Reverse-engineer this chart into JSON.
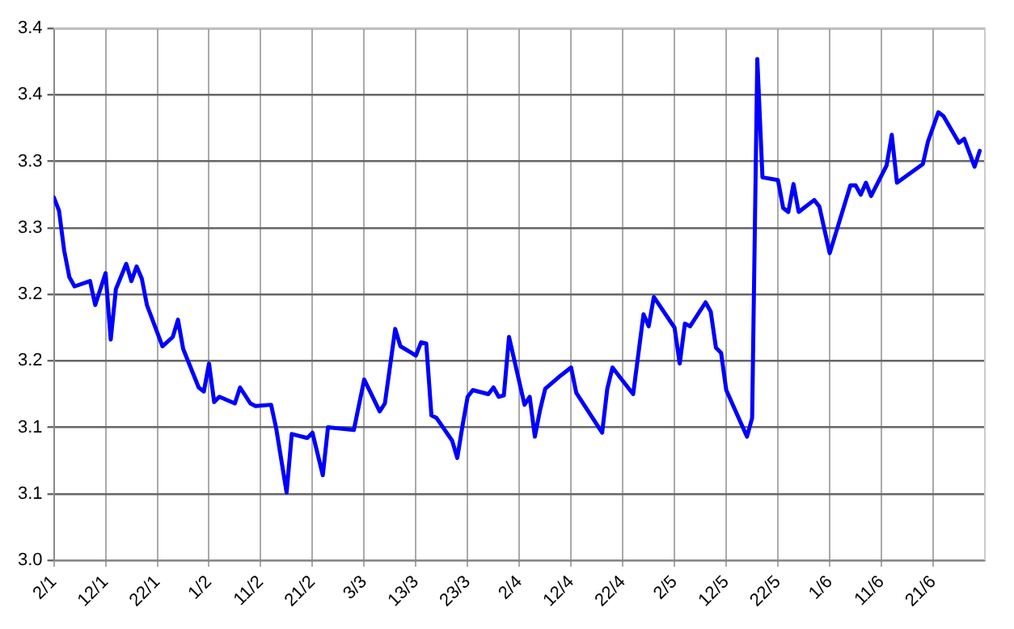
{
  "chart_data": {
    "type": "line",
    "marker": "none",
    "line_style": "solid",
    "grid": true,
    "legend": false,
    "xlim": [
      "--01-02",
      "--07-01"
    ],
    "xticks": [
      {
        "value": "--01-02",
        "label": "2/1"
      },
      {
        "value": "--01-12",
        "label": "12/1"
      },
      {
        "value": "--01-22",
        "label": "22/1"
      },
      {
        "value": "--02-01",
        "label": "1/2"
      },
      {
        "value": "--02-11",
        "label": "11/2"
      },
      {
        "value": "--02-21",
        "label": "21/2"
      },
      {
        "value": "--03-03",
        "label": "3/3"
      },
      {
        "value": "--03-13",
        "label": "13/3"
      },
      {
        "value": "--03-23",
        "label": "23/3"
      },
      {
        "value": "--04-02",
        "label": "2/4"
      },
      {
        "value": "--04-12",
        "label": "12/4"
      },
      {
        "value": "--04-22",
        "label": "22/4"
      },
      {
        "value": "--05-02",
        "label": "2/5"
      },
      {
        "value": "--05-12",
        "label": "12/5"
      },
      {
        "value": "--05-22",
        "label": "22/5"
      },
      {
        "value": "--06-01",
        "label": "1/6"
      },
      {
        "value": "--06-11",
        "label": "11/6"
      },
      {
        "value": "--06-21",
        "label": "21/6"
      }
    ],
    "ylim": [
      3.0,
      3.4
    ],
    "yticks": [
      {
        "value": 3.0,
        "label": "3.0"
      },
      {
        "value": 3.05,
        "label": "3.1"
      },
      {
        "value": 3.1,
        "label": "3.1"
      },
      {
        "value": 3.15,
        "label": "3.2"
      },
      {
        "value": 3.2,
        "label": "3.2"
      },
      {
        "value": 3.25,
        "label": "3.3"
      },
      {
        "value": 3.3,
        "label": "3.3"
      },
      {
        "value": 3.35,
        "label": "3.4"
      },
      {
        "value": 3.4,
        "label": "3.4"
      }
    ],
    "x": [
      "--01-02",
      "--01-03",
      "--01-04",
      "--01-05",
      "--01-06",
      "--01-09",
      "--01-10",
      "--01-12",
      "--01-13",
      "--01-14",
      "--01-16",
      "--01-17",
      "--01-18",
      "--01-19",
      "--01-20",
      "--01-23",
      "--01-25",
      "--01-26",
      "--01-27",
      "--01-30",
      "--01-31",
      "--02-01",
      "--02-02",
      "--02-03",
      "--02-06",
      "--02-07",
      "--02-09",
      "--02-10",
      "--02-13",
      "--02-14",
      "--02-16",
      "--02-17",
      "--02-20",
      "--02-21",
      "--02-23",
      "--02-24",
      "--03-01",
      "--03-03",
      "--03-06",
      "--03-07",
      "--03-09",
      "--03-10",
      "--03-13",
      "--03-14",
      "--03-15",
      "--03-16",
      "--03-17",
      "--03-20",
      "--03-21",
      "--03-22",
      "--03-23",
      "--03-24",
      "--03-27",
      "--03-28",
      "--03-29",
      "--03-30",
      "--03-31",
      "--04-03",
      "--04-04",
      "--04-05",
      "--04-06",
      "--04-07",
      "--04-10",
      "--04-12",
      "--04-13",
      "--04-18",
      "--04-19",
      "--04-20",
      "--04-24",
      "--04-26",
      "--04-27",
      "--04-28",
      "--05-02",
      "--05-03",
      "--05-04",
      "--05-05",
      "--05-08",
      "--05-09",
      "--05-10",
      "--05-11",
      "--05-12",
      "--05-16",
      "--05-17",
      "--05-18",
      "--05-19",
      "--05-22",
      "--05-23",
      "--05-24",
      "--05-25",
      "--05-26",
      "--05-29",
      "--05-30",
      "--06-01",
      "--06-05",
      "--06-06",
      "--06-07",
      "--06-08",
      "--06-09",
      "--06-12",
      "--06-13",
      "--06-14",
      "--06-19",
      "--06-20",
      "--06-22",
      "--06-23",
      "--06-26",
      "--06-27",
      "--06-29",
      "--06-30"
    ],
    "series": [
      {
        "color": "#0000ff",
        "values": [
          3.273,
          3.263,
          3.233,
          3.213,
          3.206,
          3.21,
          3.192,
          3.216,
          3.166,
          3.204,
          3.223,
          3.21,
          3.221,
          3.212,
          3.192,
          3.161,
          3.168,
          3.181,
          3.159,
          3.13,
          3.127,
          3.148,
          3.119,
          3.123,
          3.118,
          3.13,
          3.118,
          3.116,
          3.117,
          3.099,
          3.051,
          3.095,
          3.092,
          3.096,
          3.064,
          3.1,
          3.098,
          3.136,
          3.112,
          3.118,
          3.174,
          3.161,
          3.154,
          3.164,
          3.163,
          3.109,
          3.107,
          3.09,
          3.077,
          3.101,
          3.123,
          3.128,
          3.125,
          3.13,
          3.123,
          3.124,
          3.168,
          3.117,
          3.123,
          3.093,
          3.113,
          3.129,
          3.139,
          3.145,
          3.126,
          3.096,
          3.129,
          3.145,
          3.125,
          3.185,
          3.176,
          3.198,
          3.175,
          3.148,
          3.178,
          3.176,
          3.194,
          3.187,
          3.16,
          3.156,
          3.128,
          3.093,
          3.107,
          3.377,
          3.288,
          3.286,
          3.265,
          3.262,
          3.283,
          3.262,
          3.271,
          3.266,
          3.231,
          3.282,
          3.282,
          3.275,
          3.284,
          3.274,
          3.297,
          3.32,
          3.284,
          3.298,
          3.315,
          3.337,
          3.334,
          3.314,
          3.317,
          3.296,
          3.308
        ]
      }
    ]
  }
}
